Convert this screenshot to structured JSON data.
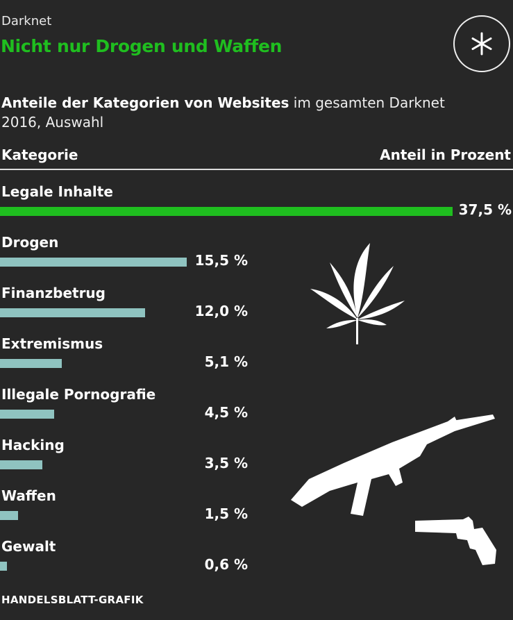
{
  "header": {
    "kicker": "Darknet",
    "title": "Nicht nur Drogen und Waffen",
    "logo_icon": "asterisk-circle-icon"
  },
  "subtitle": {
    "bold": "Anteile der Kategorien von Websites",
    "regular": " im gesamten Darknet 2016, Auswahl"
  },
  "table_header": {
    "left": "Kategorie",
    "right": "Anteil in Prozent"
  },
  "colors": {
    "background": "#272727",
    "highlight": "#1fbe1f",
    "bar": "#8fc3c0",
    "title": "#1fbe1f"
  },
  "icons": [
    "cannabis-leaf-icon",
    "rifle-icon",
    "revolver-icon"
  ],
  "chart_data": {
    "type": "bar",
    "orientation": "horizontal",
    "categories": [
      "Legale Inhalte",
      "Drogen",
      "Finanzbetrug",
      "Extremismus",
      "Illegale Pornografie",
      "Hacking",
      "Waffen",
      "Gewalt"
    ],
    "values": [
      37.5,
      15.5,
      12.0,
      5.1,
      4.5,
      3.5,
      1.5,
      0.6
    ],
    "labels": [
      "37,5 %",
      "15,5 %",
      "12,0 %",
      "5,1 %",
      "4,5 %",
      "3,5 %",
      "1,5 %",
      "0,6 %"
    ],
    "highlighted": [
      "Legale Inhalte"
    ],
    "xlabel": "Anteil in Prozent",
    "ylabel": "Kategorie",
    "grid": false
  },
  "footer": "HANDELSBLATT-GRAFIK"
}
